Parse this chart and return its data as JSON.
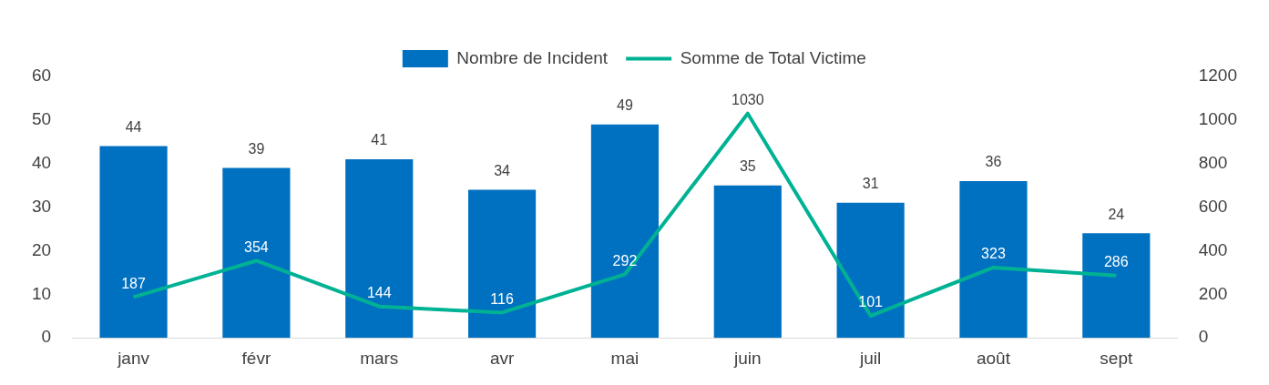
{
  "chart_data": {
    "type": "bar",
    "categories": [
      "janv",
      "févr",
      "mars",
      "avr",
      "mai",
      "juin",
      "juil",
      "août",
      "sept"
    ],
    "series": [
      {
        "name": "Nombre de Incident",
        "color": "#0070c0",
        "values": [
          44,
          39,
          41,
          34,
          49,
          35,
          31,
          36,
          24
        ]
      },
      {
        "name": "Somme de Total Victime",
        "type": "line",
        "axis": "y2",
        "color": "#00b294",
        "values": [
          187,
          354,
          144,
          116,
          292,
          1030,
          101,
          323,
          286
        ]
      }
    ],
    "ylim": [
      0,
      60
    ],
    "yticks": [
      0,
      10,
      20,
      30,
      40,
      50,
      60
    ],
    "y2lim": [
      0,
      1200
    ],
    "y2ticks": [
      0,
      200,
      400,
      600,
      800,
      1000,
      1200
    ],
    "grid": false,
    "legend": "top",
    "data_labels": true,
    "marker": "none",
    "line_style": "solid"
  }
}
